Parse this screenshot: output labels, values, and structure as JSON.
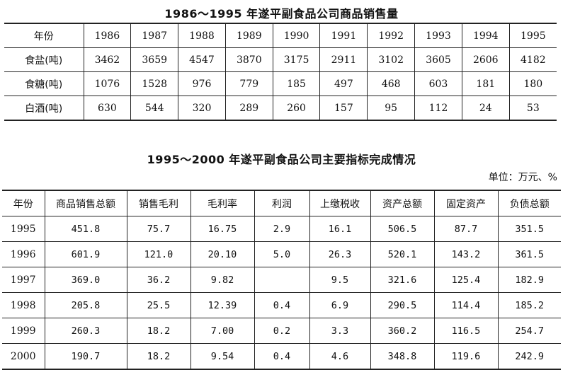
{
  "table1": {
    "title": "1986～1995 年遂平副食品公司商品销售量",
    "header_label": "年份",
    "years": [
      "1986",
      "1987",
      "1988",
      "1989",
      "1990",
      "1991",
      "1992",
      "1993",
      "1994",
      "1995"
    ],
    "rows": [
      {
        "label": "食盐(吨)",
        "values": [
          "3462",
          "3659",
          "4547",
          "3870",
          "3175",
          "2911",
          "3102",
          "3605",
          "2606",
          "4182"
        ]
      },
      {
        "label": "食糖(吨)",
        "values": [
          "1076",
          "1528",
          "976",
          "779",
          "185",
          "497",
          "468",
          "603",
          "181",
          "180"
        ]
      },
      {
        "label": "白酒(吨)",
        "values": [
          "630",
          "544",
          "320",
          "289",
          "260",
          "157",
          "95",
          "112",
          "24",
          "53"
        ]
      }
    ]
  },
  "table2": {
    "title": "1995～2000 年遂平副食品公司主要指标完成情况",
    "unit": "单位：万元、%",
    "headers": [
      "年份",
      "商品销售总额",
      "销售毛利",
      "毛利率",
      "利润",
      "上缴税收",
      "资产总额",
      "固定资产",
      "负债总额"
    ],
    "rows": [
      [
        "1995",
        "451.8",
        "75.7",
        "16.75",
        "2.9",
        "16.1",
        "506.5",
        "87.7",
        "351.5"
      ],
      [
        "1996",
        "601.9",
        "121.0",
        "20.10",
        "5.0",
        "26.3",
        "520.1",
        "143.2",
        "361.5"
      ],
      [
        "1997",
        "369.0",
        "36.2",
        "9.82",
        "",
        "9.5",
        "321.6",
        "125.4",
        "182.9"
      ],
      [
        "1998",
        "205.8",
        "25.5",
        "12.39",
        "0.4",
        "6.9",
        "290.5",
        "114.4",
        "185.2"
      ],
      [
        "1999",
        "260.3",
        "18.2",
        "7.00",
        "0.2",
        "3.3",
        "360.2",
        "116.5",
        "254.7"
      ],
      [
        "2000",
        "190.7",
        "18.2",
        "9.54",
        "0.4",
        "4.6",
        "348.8",
        "119.6",
        "242.9"
      ]
    ]
  }
}
